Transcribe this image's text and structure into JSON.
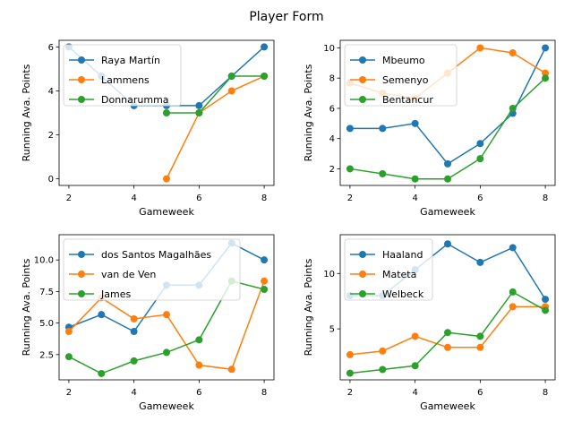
{
  "title": "Player Form",
  "colors": {
    "c0": "#1f77b4",
    "c1": "#ff7f0e",
    "c2": "#2ca02c"
  },
  "chart_data": [
    {
      "type": "line",
      "xlabel": "Gameweek",
      "ylabel": "Running Ava. Points",
      "xlim": [
        1.7,
        8.3
      ],
      "ylim": [
        -0.3,
        6.3
      ],
      "xticks": [
        2,
        4,
        6,
        8
      ],
      "yticks": [
        0,
        2,
        4,
        6
      ],
      "legend": "upper-left",
      "series": [
        {
          "name": "Raya Martín",
          "x": [
            2,
            3,
            4,
            5,
            6,
            7,
            8
          ],
          "y": [
            6.0,
            4.67,
            3.33,
            3.33,
            3.33,
            4.67,
            6.0
          ]
        },
        {
          "name": "Lammens",
          "x": [
            5,
            6,
            7,
            8
          ],
          "y": [
            0.0,
            3.0,
            4.0,
            4.67
          ]
        },
        {
          "name": "Donnarumma",
          "x": [
            5,
            6,
            7,
            8
          ],
          "y": [
            3.0,
            3.0,
            4.67,
            4.67
          ]
        }
      ]
    },
    {
      "type": "line",
      "xlabel": "Gameweek",
      "ylabel": "Running Ava. Points",
      "xlim": [
        1.7,
        8.3
      ],
      "ylim": [
        0.9,
        10.5
      ],
      "xticks": [
        2,
        4,
        6,
        8
      ],
      "yticks": [
        2,
        4,
        6,
        8,
        10
      ],
      "legend": "upper-left",
      "series": [
        {
          "name": "Mbeumo",
          "x": [
            2,
            3,
            4,
            5,
            6,
            7,
            8
          ],
          "y": [
            4.67,
            4.67,
            5.0,
            2.33,
            3.67,
            5.67,
            10.0
          ]
        },
        {
          "name": "Semenyo",
          "x": [
            2,
            3,
            4,
            5,
            6,
            7,
            8
          ],
          "y": [
            7.67,
            7.0,
            6.67,
            8.33,
            10.0,
            9.67,
            8.33
          ]
        },
        {
          "name": "Bentancur",
          "x": [
            2,
            3,
            4,
            5,
            6,
            7,
            8
          ],
          "y": [
            2.0,
            1.67,
            1.33,
            1.33,
            2.67,
            6.0,
            8.0
          ]
        }
      ]
    },
    {
      "type": "line",
      "xlabel": "Gameweek",
      "ylabel": "Running Ava. Points",
      "xlim": [
        1.7,
        8.3
      ],
      "ylim": [
        0.5,
        12.0
      ],
      "xticks": [
        2,
        4,
        6,
        8
      ],
      "yticks": [
        2.5,
        5.0,
        7.5,
        10.0
      ],
      "ytick_labels": [
        "2.5",
        "5.0",
        "7.5",
        "10.0"
      ],
      "legend": "upper-left",
      "series": [
        {
          "name": "dos Santos Magalhães",
          "x": [
            2,
            3,
            4,
            5,
            6,
            7,
            8
          ],
          "y": [
            4.67,
            5.67,
            4.33,
            8.0,
            8.0,
            11.33,
            10.0
          ]
        },
        {
          "name": "van de Ven",
          "x": [
            2,
            3,
            4,
            5,
            6,
            7,
            8
          ],
          "y": [
            4.33,
            7.0,
            5.33,
            5.67,
            1.67,
            1.33,
            8.33
          ]
        },
        {
          "name": "James",
          "x": [
            2,
            3,
            4,
            5,
            6,
            7,
            8
          ],
          "y": [
            2.33,
            1.0,
            2.0,
            2.67,
            3.67,
            8.33,
            7.67
          ]
        }
      ]
    },
    {
      "type": "line",
      "xlabel": "Gameweek",
      "ylabel": "Running Ava. Points",
      "xlim": [
        1.7,
        8.3
      ],
      "ylim": [
        0.4,
        13.5
      ],
      "xticks": [
        2,
        4,
        6,
        8
      ],
      "yticks": [
        5,
        10
      ],
      "legend": "upper-left",
      "series": [
        {
          "name": "Haaland",
          "x": [
            2,
            3,
            4,
            5,
            6,
            7,
            8
          ],
          "y": [
            8.0,
            8.0,
            10.33,
            12.67,
            11.0,
            12.33,
            7.67
          ]
        },
        {
          "name": "Mateta",
          "x": [
            2,
            3,
            4,
            5,
            6,
            7,
            8
          ],
          "y": [
            2.67,
            3.0,
            4.33,
            3.33,
            3.33,
            7.0,
            7.0
          ]
        },
        {
          "name": "Welbeck",
          "x": [
            2,
            3,
            4,
            5,
            6,
            7,
            8
          ],
          "y": [
            1.0,
            1.33,
            1.67,
            4.67,
            4.33,
            8.33,
            6.67
          ]
        }
      ]
    }
  ]
}
